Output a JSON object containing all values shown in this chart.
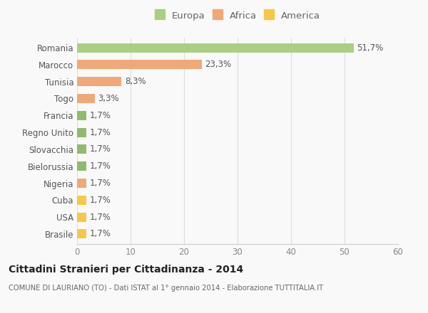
{
  "categories": [
    "Brasile",
    "USA",
    "Cuba",
    "Nigeria",
    "Bielorussia",
    "Slovacchia",
    "Regno Unito",
    "Francia",
    "Togo",
    "Tunisia",
    "Marocco",
    "Romania"
  ],
  "values": [
    1.7,
    1.7,
    1.7,
    1.7,
    1.7,
    1.7,
    1.7,
    1.7,
    3.3,
    8.3,
    23.3,
    51.7
  ],
  "labels": [
    "1,7%",
    "1,7%",
    "1,7%",
    "1,7%",
    "1,7%",
    "1,7%",
    "1,7%",
    "1,7%",
    "3,3%",
    "8,3%",
    "23,3%",
    "51,7%"
  ],
  "colors": [
    "#f5c84a",
    "#f5c84a",
    "#f5c84a",
    "#f0a878",
    "#8fbc6a",
    "#8fbc6a",
    "#8fbc6a",
    "#8fbc6a",
    "#f0a878",
    "#f0a878",
    "#f0a878",
    "#aacf82"
  ],
  "legend_labels": [
    "Europa",
    "Africa",
    "America"
  ],
  "legend_colors": [
    "#aacf82",
    "#f0a878",
    "#f5c84a"
  ],
  "title": "Cittadini Stranieri per Cittadinanza - 2014",
  "subtitle": "COMUNE DI LAURIANO (TO) - Dati ISTAT al 1° gennaio 2014 - Elaborazione TUTTITALIA.IT",
  "xlim": [
    0,
    60
  ],
  "xticks": [
    0,
    10,
    20,
    30,
    40,
    50,
    60
  ],
  "background_color": "#f9f9f9",
  "bar_height": 0.55,
  "label_fontsize": 8.5,
  "tick_fontsize": 8.5,
  "legend_fontsize": 9.5
}
